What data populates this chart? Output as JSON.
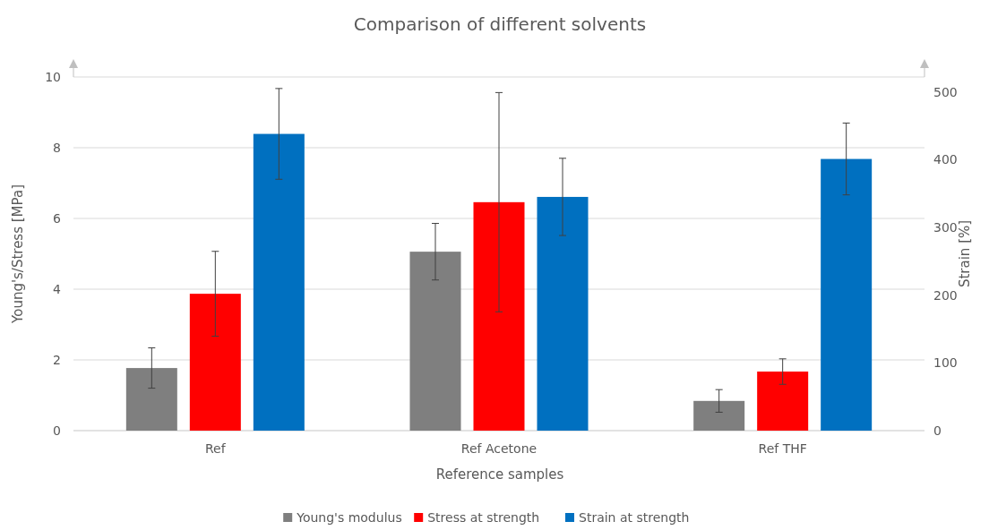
{
  "chart_data": {
    "type": "bar",
    "title": "Comparison of different solvents",
    "xlabel": "Reference samples",
    "ylabel": "Young's/Stress [MPa]",
    "y2label": "Strain [%]",
    "categories": [
      "Ref",
      "Ref Acetone",
      "Ref THF"
    ],
    "series": [
      {
        "name": "Young's modulus",
        "color": "#7f7f7f",
        "values": [
          1.77,
          5.06,
          0.84
        ],
        "errors": [
          0.57,
          0.8,
          0.32
        ]
      },
      {
        "name": "Stress at strength",
        "color": "#ff0000",
        "values": [
          3.87,
          6.46,
          1.67
        ],
        "errors": [
          1.2,
          3.1,
          0.36
        ]
      },
      {
        "name": "Strain at strength",
        "color": "#0070c0",
        "values": [
          438,
          345,
          401
        ],
        "errors": [
          67,
          57,
          53
        ],
        "axis": "y2"
      }
    ],
    "ylim": [
      0,
      10
    ],
    "yticks": [
      0,
      2,
      4,
      6,
      8,
      10
    ],
    "y2lim": [
      0,
      522
    ],
    "y2ticks": [
      0,
      100,
      200,
      300,
      400,
      500
    ],
    "grid": "y",
    "legend": "bottom"
  }
}
